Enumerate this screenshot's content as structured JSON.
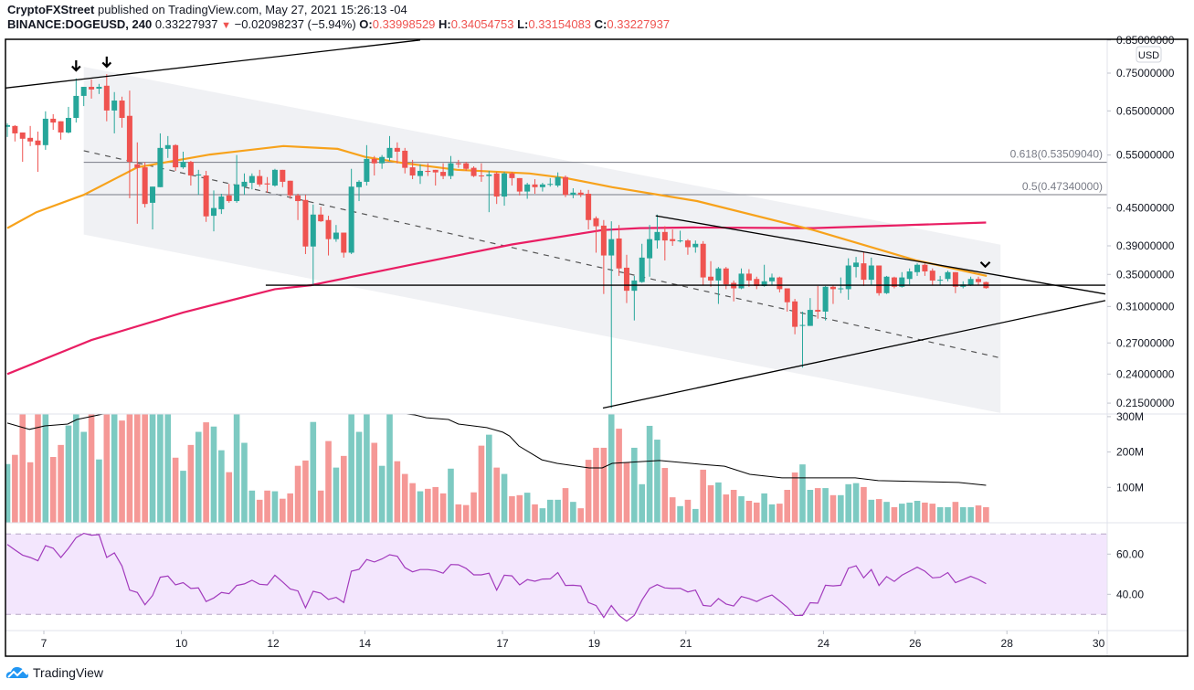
{
  "header": {
    "publisher": "CryptoFXStreet",
    "published_text": "published on TradingView.com, May 27, 2021 15:26:13 -04",
    "symbol": "BINANCE:DOGEUSD, 240",
    "last": "0.33227937",
    "change_icon": "triangle-down-icon",
    "change": "−0.02098237 (−5.94%)",
    "o_label": "O:",
    "o_value": "0.33998529",
    "h_label": "H:",
    "h_value": "0.34054753",
    "l_label": "L:",
    "l_value": "0.33154083",
    "c_label": "C:",
    "c_value": "0.33227937"
  },
  "footer": {
    "brand": "TradingView",
    "logo_icon": "tradingview-cloud-icon"
  },
  "colors": {
    "up": "#26a69a",
    "down": "#ef5350",
    "ma50": "#f7a21b",
    "ma200": "#e91e63",
    "rsi": "#a23bbd",
    "rsi_band": "#f3e6fd",
    "channel": "#f0f1f4",
    "drawing": "#000000",
    "fib": "#787b86"
  },
  "chart_data": {
    "type": "candlestick",
    "symbol": "BINANCE:DOGEUSD",
    "interval": "240",
    "currency_badge": "USD",
    "price_scale": "log",
    "price_ticks": [
      "0.85000000",
      "0.75000000",
      "0.65000000",
      "0.55000000",
      "0.45000000",
      "0.39000000",
      "0.35000000",
      "0.31000000",
      "0.27000000",
      "0.24000000",
      "0.21500000"
    ],
    "price_tick_values": [
      0.85,
      0.75,
      0.65,
      0.55,
      0.45,
      0.39,
      0.35,
      0.31,
      0.27,
      0.24,
      0.215
    ],
    "x_ticks": [
      "7",
      "10",
      "12",
      "14",
      "17",
      "19",
      "21",
      "24",
      "26",
      "28",
      "30"
    ],
    "x_tick_days": [
      7,
      10,
      12,
      14,
      17,
      19,
      21,
      24,
      26,
      28,
      30
    ],
    "ohlc": [
      [
        0.612,
        0.62,
        0.589,
        0.616
      ],
      [
        0.614,
        0.616,
        0.579,
        0.597
      ],
      [
        0.599,
        0.599,
        0.536,
        0.585
      ],
      [
        0.587,
        0.614,
        0.569,
        0.579
      ],
      [
        0.581,
        0.601,
        0.516,
        0.571
      ],
      [
        0.571,
        0.649,
        0.561,
        0.631
      ],
      [
        0.631,
        0.642,
        0.605,
        0.622
      ],
      [
        0.625,
        0.625,
        0.583,
        0.599
      ],
      [
        0.599,
        0.66,
        0.597,
        0.633
      ],
      [
        0.633,
        0.735,
        0.622,
        0.688
      ],
      [
        0.688,
        0.712,
        0.662,
        0.712
      ],
      [
        0.712,
        0.732,
        0.681,
        0.705
      ],
      [
        0.707,
        0.72,
        0.693,
        0.712
      ],
      [
        0.715,
        0.747,
        0.625,
        0.651
      ],
      [
        0.651,
        0.698,
        0.597,
        0.676
      ],
      [
        0.676,
        0.686,
        0.61,
        0.633
      ],
      [
        0.638,
        0.702,
        0.467,
        0.536
      ],
      [
        0.531,
        0.577,
        0.424,
        0.524
      ],
      [
        0.525,
        0.535,
        0.451,
        0.457
      ],
      [
        0.459,
        0.488,
        0.415,
        0.488
      ],
      [
        0.487,
        0.597,
        0.487,
        0.565
      ],
      [
        0.563,
        0.591,
        0.544,
        0.571
      ],
      [
        0.571,
        0.573,
        0.518,
        0.525
      ],
      [
        0.525,
        0.557,
        0.522,
        0.536
      ],
      [
        0.536,
        0.538,
        0.49,
        0.509
      ],
      [
        0.509,
        0.52,
        0.473,
        0.511
      ],
      [
        0.509,
        0.518,
        0.427,
        0.436
      ],
      [
        0.437,
        0.481,
        0.412,
        0.45
      ],
      [
        0.448,
        0.475,
        0.44,
        0.47
      ],
      [
        0.472,
        0.493,
        0.459,
        0.462
      ],
      [
        0.462,
        0.55,
        0.459,
        0.492
      ],
      [
        0.488,
        0.513,
        0.473,
        0.497
      ],
      [
        0.495,
        0.513,
        0.483,
        0.508
      ],
      [
        0.508,
        0.52,
        0.488,
        0.492
      ],
      [
        0.494,
        0.506,
        0.477,
        0.492
      ],
      [
        0.49,
        0.522,
        0.488,
        0.52
      ],
      [
        0.52,
        0.52,
        0.487,
        0.497
      ],
      [
        0.499,
        0.499,
        0.466,
        0.472
      ],
      [
        0.472,
        0.475,
        0.43,
        0.462
      ],
      [
        0.464,
        0.473,
        0.378,
        0.389
      ],
      [
        0.389,
        0.456,
        0.336,
        0.439
      ],
      [
        0.439,
        0.452,
        0.427,
        0.428
      ],
      [
        0.43,
        0.437,
        0.376,
        0.4
      ],
      [
        0.4,
        0.422,
        0.396,
        0.41
      ],
      [
        0.41,
        0.41,
        0.373,
        0.38
      ],
      [
        0.38,
        0.522,
        0.378,
        0.488
      ],
      [
        0.487,
        0.5,
        0.462,
        0.497
      ],
      [
        0.497,
        0.571,
        0.49,
        0.542
      ],
      [
        0.542,
        0.548,
        0.509,
        0.533
      ],
      [
        0.533,
        0.55,
        0.522,
        0.546
      ],
      [
        0.544,
        0.591,
        0.538,
        0.565
      ],
      [
        0.565,
        0.577,
        0.533,
        0.557
      ],
      [
        0.559,
        0.565,
        0.513,
        0.524
      ],
      [
        0.525,
        0.54,
        0.502,
        0.509
      ],
      [
        0.508,
        0.531,
        0.493,
        0.518
      ],
      [
        0.518,
        0.533,
        0.508,
        0.516
      ],
      [
        0.52,
        0.52,
        0.49,
        0.515
      ],
      [
        0.516,
        0.533,
        0.502,
        0.508
      ],
      [
        0.508,
        0.548,
        0.502,
        0.533
      ],
      [
        0.533,
        0.54,
        0.524,
        0.531
      ],
      [
        0.533,
        0.536,
        0.518,
        0.522
      ],
      [
        0.524,
        0.527,
        0.506,
        0.508
      ],
      [
        0.509,
        0.533,
        0.497,
        0.508
      ],
      [
        0.508,
        0.518,
        0.443,
        0.511
      ],
      [
        0.513,
        0.516,
        0.457,
        0.47
      ],
      [
        0.47,
        0.516,
        0.454,
        0.513
      ],
      [
        0.513,
        0.516,
        0.49,
        0.504
      ],
      [
        0.504,
        0.504,
        0.472,
        0.479
      ],
      [
        0.479,
        0.495,
        0.466,
        0.492
      ],
      [
        0.492,
        0.502,
        0.475,
        0.487
      ],
      [
        0.487,
        0.495,
        0.479,
        0.492
      ],
      [
        0.492,
        0.504,
        0.488,
        0.493
      ],
      [
        0.49,
        0.515,
        0.487,
        0.506
      ],
      [
        0.506,
        0.509,
        0.469,
        0.473
      ],
      [
        0.473,
        0.485,
        0.467,
        0.477
      ],
      [
        0.477,
        0.482,
        0.469,
        0.473
      ],
      [
        0.475,
        0.482,
        0.415,
        0.43
      ],
      [
        0.433,
        0.436,
        0.38,
        0.42
      ],
      [
        0.421,
        0.43,
        0.325,
        0.376
      ],
      [
        0.376,
        0.428,
        0.211,
        0.4
      ],
      [
        0.401,
        0.422,
        0.348,
        0.358
      ],
      [
        0.359,
        0.377,
        0.314,
        0.329
      ],
      [
        0.329,
        0.348,
        0.294,
        0.342
      ],
      [
        0.34,
        0.393,
        0.339,
        0.373
      ],
      [
        0.372,
        0.422,
        0.347,
        0.4
      ],
      [
        0.398,
        0.439,
        0.386,
        0.411
      ],
      [
        0.411,
        0.42,
        0.369,
        0.398
      ],
      [
        0.4,
        0.415,
        0.39,
        0.397
      ],
      [
        0.397,
        0.413,
        0.395,
        0.398
      ],
      [
        0.398,
        0.4,
        0.377,
        0.388
      ],
      [
        0.388,
        0.398,
        0.38,
        0.393
      ],
      [
        0.393,
        0.397,
        0.336,
        0.346
      ],
      [
        0.347,
        0.368,
        0.334,
        0.342
      ],
      [
        0.342,
        0.36,
        0.313,
        0.358
      ],
      [
        0.358,
        0.36,
        0.331,
        0.337
      ],
      [
        0.339,
        0.342,
        0.316,
        0.332
      ],
      [
        0.332,
        0.358,
        0.331,
        0.351
      ],
      [
        0.351,
        0.357,
        0.334,
        0.342
      ],
      [
        0.344,
        0.347,
        0.331,
        0.335
      ],
      [
        0.335,
        0.363,
        0.334,
        0.341
      ],
      [
        0.341,
        0.351,
        0.336,
        0.346
      ],
      [
        0.346,
        0.347,
        0.327,
        0.331
      ],
      [
        0.332,
        0.332,
        0.304,
        0.315
      ],
      [
        0.316,
        0.319,
        0.279,
        0.287
      ],
      [
        0.288,
        0.304,
        0.246,
        0.289
      ],
      [
        0.288,
        0.32,
        0.288,
        0.306
      ],
      [
        0.306,
        0.335,
        0.296,
        0.304
      ],
      [
        0.304,
        0.335,
        0.294,
        0.334
      ],
      [
        0.334,
        0.336,
        0.313,
        0.331
      ],
      [
        0.331,
        0.346,
        0.326,
        0.332
      ],
      [
        0.331,
        0.372,
        0.318,
        0.362
      ],
      [
        0.36,
        0.374,
        0.346,
        0.366
      ],
      [
        0.365,
        0.381,
        0.335,
        0.343
      ],
      [
        0.343,
        0.373,
        0.336,
        0.362
      ],
      [
        0.362,
        0.362,
        0.323,
        0.326
      ],
      [
        0.326,
        0.348,
        0.325,
        0.347
      ],
      [
        0.346,
        0.347,
        0.332,
        0.334
      ],
      [
        0.334,
        0.353,
        0.333,
        0.346
      ],
      [
        0.344,
        0.358,
        0.337,
        0.354
      ],
      [
        0.353,
        0.365,
        0.348,
        0.363
      ],
      [
        0.363,
        0.365,
        0.348,
        0.354
      ],
      [
        0.355,
        0.358,
        0.336,
        0.342
      ],
      [
        0.342,
        0.348,
        0.336,
        0.343
      ],
      [
        0.344,
        0.355,
        0.341,
        0.353
      ],
      [
        0.353,
        0.353,
        0.326,
        0.334
      ],
      [
        0.334,
        0.341,
        0.332,
        0.337
      ],
      [
        0.336,
        0.347,
        0.335,
        0.344
      ],
      [
        0.344,
        0.347,
        0.336,
        0.34
      ],
      [
        0.33998529,
        0.34054753,
        0.33154083,
        0.33227937
      ]
    ],
    "ma50": [
      [
        0,
        0.417
      ],
      [
        3.8,
        0.443
      ],
      [
        10,
        0.473
      ],
      [
        17,
        0.525
      ],
      [
        26.5,
        0.551
      ],
      [
        36.1,
        0.569
      ],
      [
        43.2,
        0.563
      ],
      [
        46.8,
        0.546
      ],
      [
        51.6,
        0.534
      ],
      [
        58.8,
        0.52
      ],
      [
        68.3,
        0.513
      ],
      [
        73.1,
        0.504
      ],
      [
        79.1,
        0.487
      ],
      [
        90.2,
        0.462
      ],
      [
        105.4,
        0.414
      ],
      [
        118.9,
        0.369
      ],
      [
        128.1,
        0.348
      ]
    ],
    "ma200": [
      [
        0,
        0.24
      ],
      [
        11,
        0.273
      ],
      [
        23,
        0.303
      ],
      [
        35,
        0.331
      ],
      [
        39.7,
        0.336
      ],
      [
        52.8,
        0.363
      ],
      [
        66,
        0.392
      ],
      [
        77.9,
        0.414
      ],
      [
        82.7,
        0.417
      ],
      [
        89.8,
        0.418
      ],
      [
        105.4,
        0.417
      ],
      [
        128,
        0.426
      ]
    ],
    "fib_levels": [
      {
        "label": "0.618(0.53509040)",
        "price": 0.5350904,
        "from_bar": 10
      },
      {
        "label": "0.5(0.47340000)",
        "price": 0.4734,
        "from_bar": 10
      }
    ],
    "drawings": [
      {
        "kind": "trendline",
        "from": [
          -1,
          0.707
        ],
        "to": [
          54,
          0.85
        ]
      },
      {
        "kind": "horizontal",
        "from": [
          33.8,
          0.336
        ],
        "to": [
          143.6,
          0.336
        ]
      },
      {
        "kind": "trendline",
        "from": [
          84.8,
          0.437
        ],
        "to": [
          143.6,
          0.325
        ]
      },
      {
        "kind": "trendline",
        "from": [
          77.9,
          0.211
        ],
        "to": [
          143.6,
          0.317
        ]
      }
    ],
    "channel": {
      "top": [
        [
          10,
          0.768
        ],
        [
          129.9,
          0.3916
        ]
      ],
      "bottom": [
        [
          10,
          0.407
        ],
        [
          129.9,
          0.2071
        ]
      ],
      "mid": [
        [
          10,
          0.559
        ],
        [
          129.9,
          0.2551
        ]
      ]
    },
    "markers": [
      {
        "kind": "arrow-down",
        "bar": 9,
        "price": 0.771
      },
      {
        "kind": "arrow-down",
        "bar": 13,
        "price": 0.782
      },
      {
        "kind": "chevron-down",
        "bar": 127.9,
        "price": 0.363
      }
    ],
    "volume_ticks": [
      "300M",
      "200M",
      "100M"
    ],
    "volume_tick_values": [
      300,
      200,
      100
    ],
    "volume_unit": "M",
    "volume": [
      166,
      192,
      340,
      171,
      330,
      320,
      186,
      220,
      275,
      350,
      257,
      320,
      179,
      380,
      340,
      289,
      330,
      400,
      360,
      330,
      310,
      320,
      184,
      147,
      220,
      257,
      284,
      272,
      205,
      143,
      310,
      226,
      91,
      65,
      91,
      89,
      68,
      83,
      161,
      176,
      285,
      91,
      231,
      156,
      189,
      340,
      257,
      330,
      226,
      161,
      310,
      174,
      138,
      112,
      89,
      96,
      101,
      83,
      153,
      52,
      50,
      86,
      218,
      249,
      156,
      138,
      75,
      78,
      85,
      52,
      41,
      65,
      65,
      98,
      59,
      41,
      178,
      212,
      212,
      330,
      266,
      171,
      212,
      109,
      274,
      235,
      155,
      72,
      47,
      65,
      39,
      150,
      106,
      114,
      80,
      93,
      75,
      62,
      57,
      83,
      52,
      54,
      93,
      142,
      165,
      93,
      98,
      98,
      78,
      78,
      109,
      112,
      101,
      65,
      67,
      59,
      44,
      54,
      57,
      62,
      57,
      54,
      44,
      44,
      59,
      44,
      44,
      49,
      44
    ],
    "volume_ma": [
      [
        0,
        282
      ],
      [
        2.9,
        264
      ],
      [
        4.9,
        274
      ],
      [
        7.9,
        279
      ],
      [
        9.1,
        292
      ],
      [
        12.4,
        307
      ],
      [
        23,
        330
      ],
      [
        35,
        335
      ],
      [
        47,
        320
      ],
      [
        53.3,
        305
      ],
      [
        54.8,
        297
      ],
      [
        57.7,
        292
      ],
      [
        59,
        279
      ],
      [
        62.7,
        269
      ],
      [
        64.8,
        256
      ],
      [
        65.7,
        245
      ],
      [
        66.9,
        217
      ],
      [
        69.9,
        178
      ],
      [
        71.9,
        168
      ],
      [
        76.1,
        155
      ],
      [
        77.8,
        155
      ],
      [
        79.1,
        168
      ],
      [
        85.3,
        176
      ],
      [
        90.8,
        165
      ],
      [
        93.8,
        160
      ],
      [
        97.1,
        137
      ],
      [
        101.3,
        127
      ],
      [
        110.9,
        127
      ],
      [
        113.9,
        119
      ],
      [
        124.4,
        114
      ],
      [
        128,
        106
      ]
    ],
    "rsi_ticks": [
      "60.00",
      "40.00"
    ],
    "rsi_tick_values": [
      60,
      40
    ],
    "rsi_band": [
      30,
      70
    ],
    "rsi": [
      64.8,
      62.1,
      59.5,
      58.3,
      56.7,
      64.2,
      62.9,
      58.3,
      62.9,
      68.2,
      70.3,
      69.4,
      69.7,
      58.3,
      60.6,
      54.1,
      42.1,
      40.9,
      34.8,
      39.4,
      48.5,
      49.1,
      44.7,
      45.8,
      42.9,
      43.2,
      36.4,
      38.2,
      40.9,
      40.3,
      44.4,
      45.2,
      47.0,
      45.0,
      44.7,
      49.5,
      46.2,
      42.7,
      41.7,
      33.3,
      41.5,
      40.6,
      37.4,
      38.5,
      35.9,
      51.5,
      52.4,
      57.3,
      56.1,
      57.6,
      59.7,
      58.9,
      53.3,
      51.2,
      52.3,
      52.3,
      51.8,
      50.5,
      54.8,
      54.7,
      52.9,
      49.7,
      49.7,
      50.5,
      42.1,
      49.5,
      49.2,
      44.7,
      47.3,
      46.5,
      47.6,
      47.7,
      50.8,
      44.4,
      44.5,
      44.2,
      35.9,
      34.4,
      28.5,
      34.4,
      29.5,
      26.7,
      29.5,
      37.1,
      42.9,
      44.8,
      43.2,
      42.9,
      43.0,
      41.2,
      42.1,
      34.5,
      34.1,
      37.9,
      35.2,
      34.2,
      38.9,
      37.9,
      36.4,
      38.3,
      39.7,
      36.7,
      33.6,
      29.5,
      29.5,
      35.8,
      35.6,
      44.5,
      44.2,
      44.5,
      53.0,
      54.2,
      48.2,
      52.3,
      44.4,
      48.8,
      46.4,
      49.5,
      51.5,
      53.5,
      51.5,
      48.2,
      48.5,
      50.8,
      45.8,
      47.3,
      48.9,
      47.4,
      45.3
    ]
  }
}
